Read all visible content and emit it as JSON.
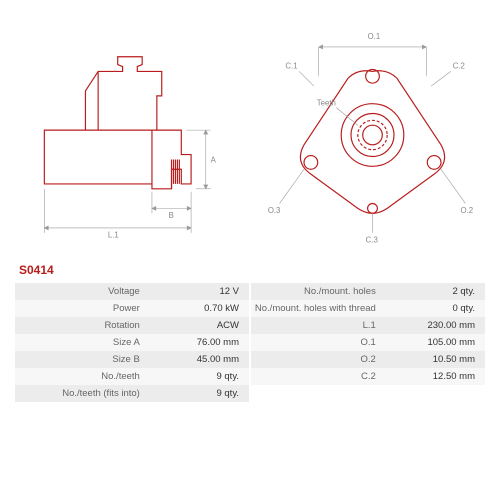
{
  "part_number": "S0414",
  "colors": {
    "outline": "#b91c1c",
    "dim": "#999999",
    "dim_text": "#888888",
    "row_odd": "#ececec",
    "row_even": "#f7f7f7",
    "text": "#555555"
  },
  "drawing": {
    "type": "engineering-diagram",
    "stroke_width": 1,
    "dim_stroke_width": 0.6
  },
  "left_labels": {
    "A": "A",
    "B": "B",
    "L1": "L.1"
  },
  "right_labels": {
    "O1": "O.1",
    "O2": "O.2",
    "O3": "O.3",
    "C1": "C.1",
    "C2": "C.2",
    "C3": "C.3",
    "teeth": "Teeth"
  },
  "specs_left": [
    {
      "label": "Voltage",
      "value": "12 V"
    },
    {
      "label": "Power",
      "value": "0.70 kW"
    },
    {
      "label": "Rotation",
      "value": "ACW"
    },
    {
      "label": "Size A",
      "value": "76.00 mm"
    },
    {
      "label": "Size B",
      "value": "45.00 mm"
    },
    {
      "label": "No./teeth",
      "value": "9 qty."
    },
    {
      "label": "No./teeth (fits into)",
      "value": "9 qty."
    }
  ],
  "specs_right": [
    {
      "label": "No./mount. holes",
      "value": "2 qty."
    },
    {
      "label": "No./mount. holes with thread",
      "value": "0 qty."
    },
    {
      "label": "L.1",
      "value": "230.00 mm"
    },
    {
      "label": "O.1",
      "value": "105.00 mm"
    },
    {
      "label": "O.2",
      "value": "10.50 mm"
    },
    {
      "label": "C.2",
      "value": "12.50 mm"
    }
  ]
}
